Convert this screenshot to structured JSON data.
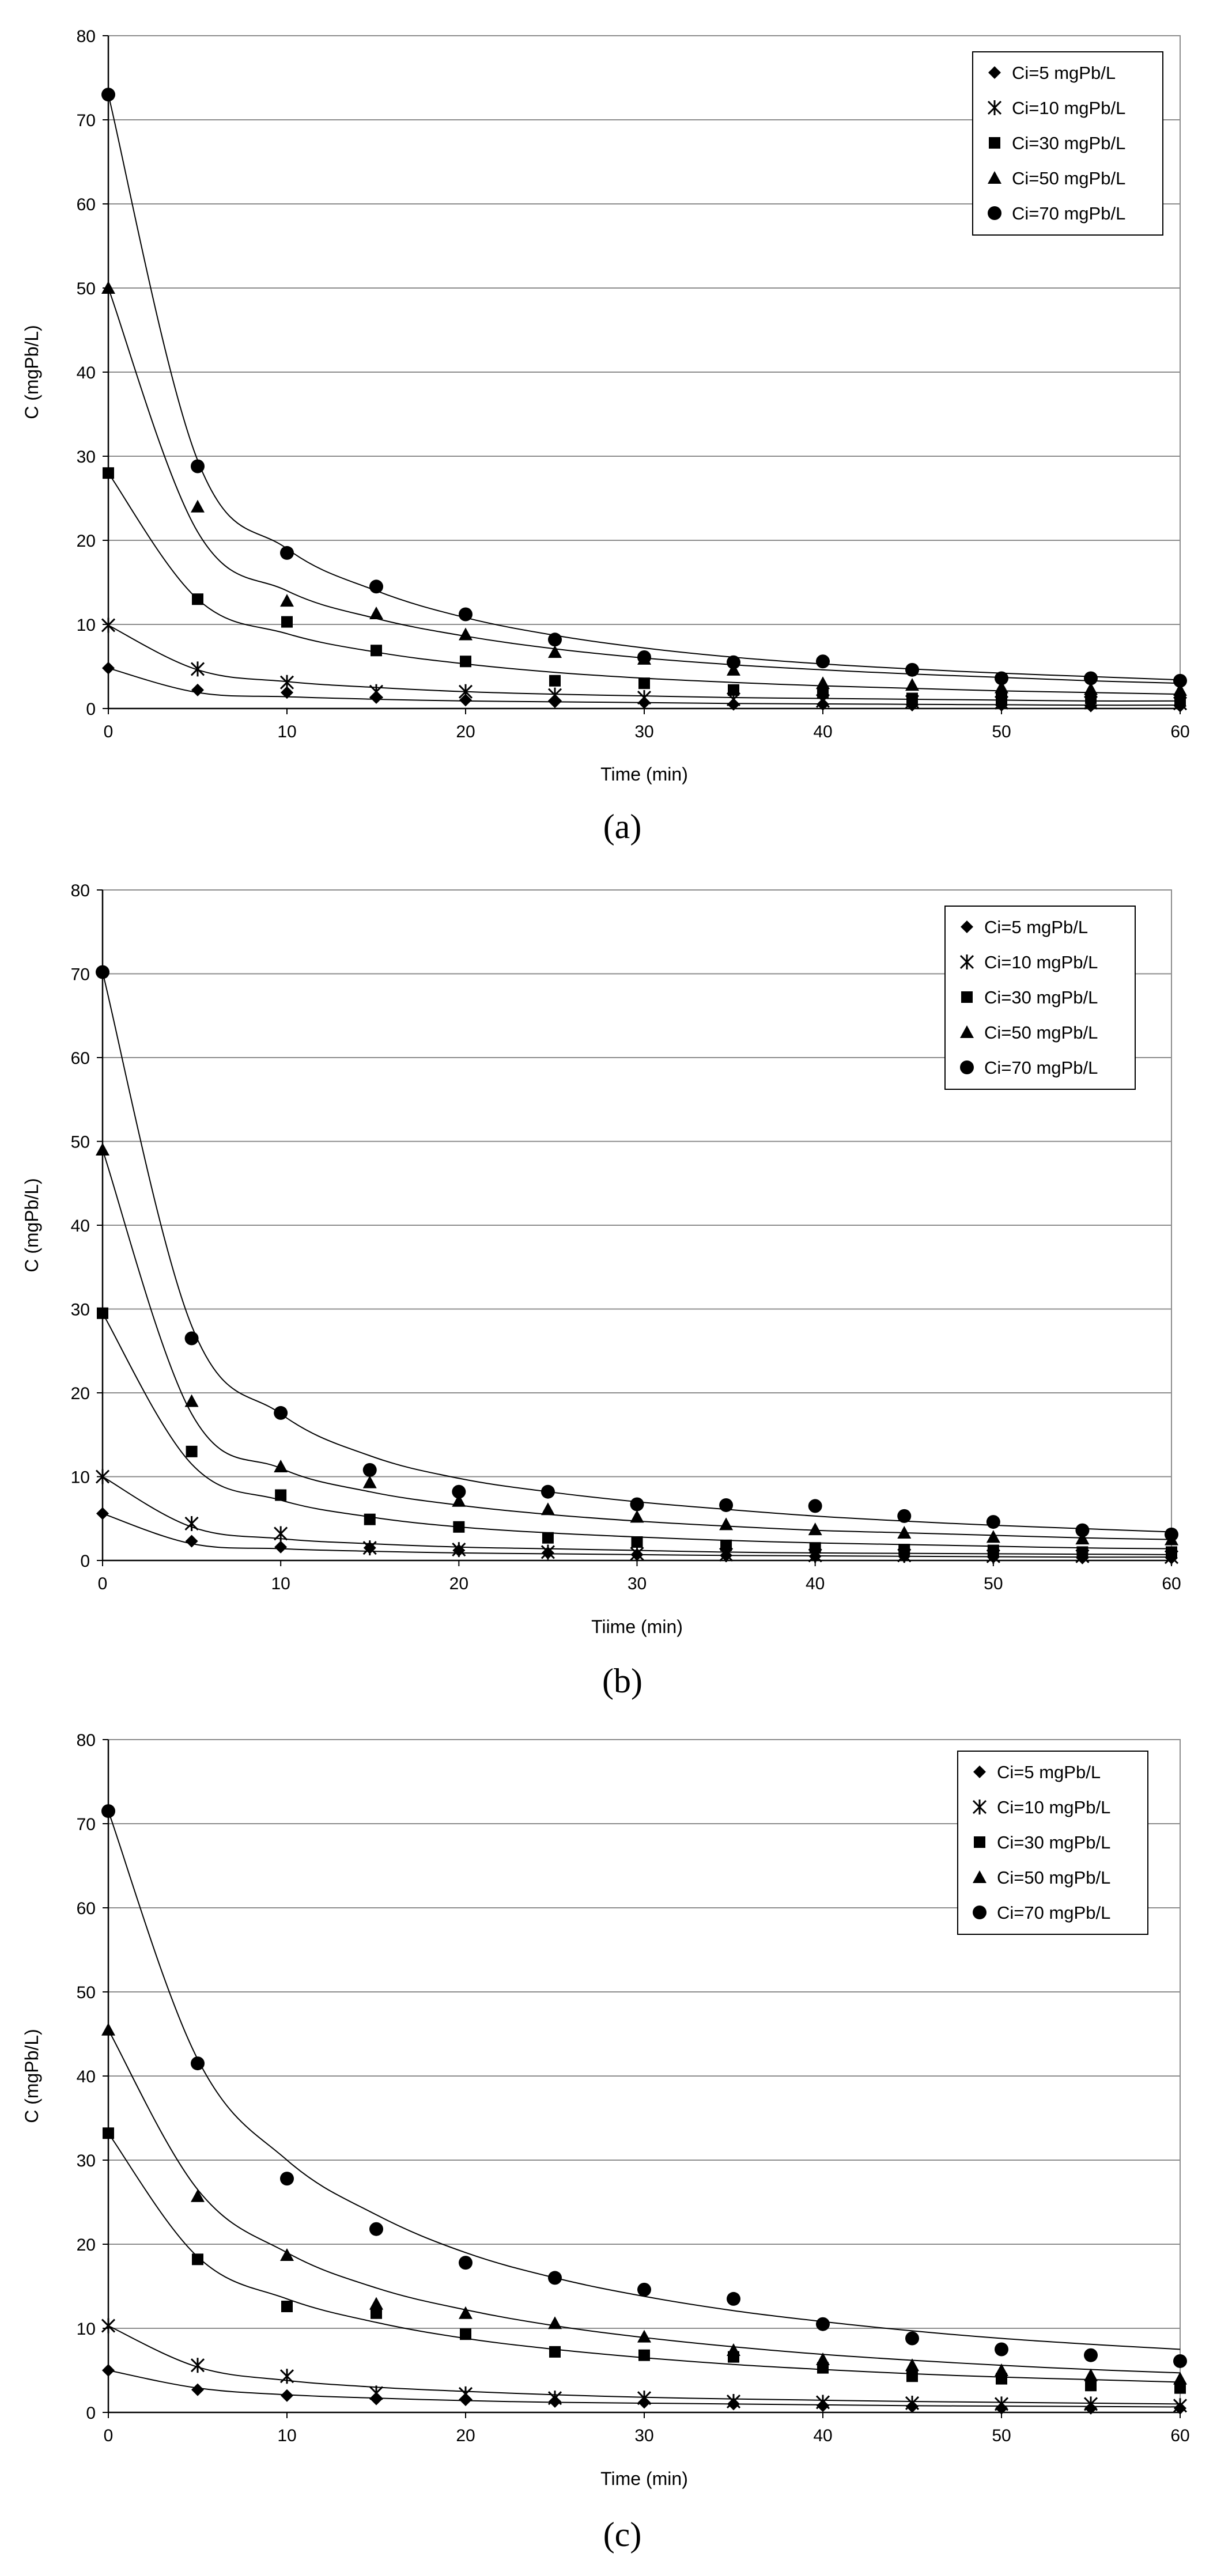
{
  "chart_data": [
    {
      "type": "scatter",
      "panel_label": "(a)",
      "xlabel": "Time (min)",
      "ylabel": "C (mgPb/L)",
      "xlim": [
        0,
        60
      ],
      "ylim": [
        0,
        80
      ],
      "x_ticks": [
        0,
        10,
        20,
        30,
        40,
        50,
        60
      ],
      "y_ticks": [
        0,
        10,
        20,
        30,
        40,
        50,
        60,
        70,
        80
      ],
      "grid": "horizontal",
      "legend_position": "top-right",
      "x": [
        0,
        5,
        10,
        15,
        20,
        25,
        30,
        35,
        40,
        45,
        50,
        55,
        60
      ],
      "series": [
        {
          "name": "Ci=5 mgPb/L",
          "marker": "diamond",
          "values": [
            4.8,
            2.2,
            1.9,
            1.3,
            1.0,
            0.8,
            0.7,
            0.5,
            0.5,
            0.4,
            0.4,
            0.3,
            0.3
          ],
          "fit": [
            4.8,
            1.9,
            1.4,
            1.1,
            0.9,
            0.8,
            0.7,
            0.6,
            0.55,
            0.5,
            0.45,
            0.4,
            0.4
          ]
        },
        {
          "name": "Ci=10 mgPb/L",
          "marker": "cross",
          "values": [
            9.9,
            4.7,
            3.1,
            2.0,
            2.0,
            1.6,
            1.3,
            1.1,
            0.9,
            0.8,
            0.7,
            0.7,
            0.6
          ],
          "fit": [
            9.9,
            4.6,
            3.2,
            2.5,
            2.0,
            1.7,
            1.5,
            1.3,
            1.2,
            1.1,
            1.0,
            0.9,
            0.9
          ]
        },
        {
          "name": "Ci=30 mgPb/L",
          "marker": "square",
          "values": [
            28.0,
            13.0,
            10.3,
            6.9,
            5.6,
            3.3,
            3.0,
            2.2,
            1.9,
            1.2,
            1.2,
            1.2,
            1.0
          ],
          "fit": [
            28.0,
            13.0,
            8.9,
            6.7,
            5.3,
            4.3,
            3.6,
            3.1,
            2.7,
            2.4,
            2.1,
            1.9,
            1.7
          ]
        },
        {
          "name": "Ci=50 mgPb/L",
          "marker": "triangle",
          "values": [
            50.0,
            24.0,
            12.8,
            11.3,
            8.8,
            6.7,
            5.9,
            4.6,
            3.0,
            2.8,
            2.5,
            2.3,
            2.2
          ],
          "fit": [
            50.0,
            21.0,
            14.0,
            10.7,
            8.6,
            7.1,
            6.0,
            5.2,
            4.6,
            4.1,
            3.7,
            3.3,
            3.0
          ]
        },
        {
          "name": "Ci=70 mgPb/L",
          "marker": "circle",
          "values": [
            73.0,
            28.8,
            18.5,
            14.5,
            11.2,
            8.2,
            6.1,
            5.5,
            5.6,
            4.6,
            3.6,
            3.6,
            3.3
          ],
          "fit": [
            73.0,
            29.5,
            19.0,
            14.0,
            10.8,
            8.7,
            7.2,
            6.1,
            5.3,
            4.7,
            4.2,
            3.8,
            3.4
          ]
        }
      ]
    },
    {
      "type": "scatter",
      "panel_label": "(b)",
      "xlabel": "Tiime (min)",
      "ylabel": "C (mgPb/L)",
      "xlim": [
        0,
        60
      ],
      "ylim": [
        0,
        80
      ],
      "x_ticks": [
        0,
        10,
        20,
        30,
        40,
        50,
        60
      ],
      "y_ticks": [
        0,
        10,
        20,
        30,
        40,
        50,
        60,
        70,
        80
      ],
      "grid": "horizontal",
      "legend_position": "top-right",
      "x": [
        0,
        5,
        10,
        15,
        20,
        25,
        30,
        35,
        40,
        45,
        50,
        55,
        60
      ],
      "series": [
        {
          "name": "Ci=5 mgPb/L",
          "marker": "diamond",
          "values": [
            5.6,
            2.3,
            1.6,
            1.5,
            1.2,
            0.9,
            0.7,
            0.6,
            0.5,
            0.5,
            0.4,
            0.3,
            0.3
          ],
          "fit": [
            5.6,
            2.0,
            1.4,
            1.1,
            0.9,
            0.8,
            0.7,
            0.6,
            0.55,
            0.5,
            0.45,
            0.4,
            0.4
          ]
        },
        {
          "name": "Ci=10 mgPb/L",
          "marker": "cross",
          "values": [
            10.0,
            4.4,
            3.2,
            1.5,
            1.3,
            1.0,
            0.8,
            0.7,
            0.6,
            0.6,
            0.5,
            0.5,
            0.4
          ],
          "fit": [
            10.0,
            4.0,
            2.6,
            2.0,
            1.6,
            1.4,
            1.2,
            1.0,
            0.9,
            0.85,
            0.8,
            0.75,
            0.7
          ]
        },
        {
          "name": "Ci=30 mgPb/L",
          "marker": "square",
          "values": [
            29.5,
            13.0,
            7.8,
            4.9,
            4.0,
            2.7,
            2.2,
            1.8,
            1.5,
            1.3,
            1.2,
            1.0,
            1.0
          ],
          "fit": [
            29.5,
            11.5,
            7.2,
            5.2,
            4.0,
            3.3,
            2.8,
            2.4,
            2.1,
            1.9,
            1.7,
            1.5,
            1.4
          ]
        },
        {
          "name": "Ci=50 mgPb/L",
          "marker": "triangle",
          "values": [
            49.0,
            19.0,
            11.2,
            9.3,
            7.1,
            6.1,
            5.2,
            4.3,
            3.7,
            3.3,
            2.8,
            2.6,
            2.5
          ],
          "fit": [
            49.0,
            17.5,
            11.0,
            8.2,
            6.6,
            5.5,
            4.7,
            4.1,
            3.6,
            3.3,
            3.0,
            2.7,
            2.5
          ]
        },
        {
          "name": "Ci=70 mgPb/L",
          "marker": "circle",
          "values": [
            70.2,
            26.5,
            17.6,
            10.8,
            8.2,
            8.2,
            6.7,
            6.6,
            6.5,
            5.3,
            4.6,
            3.6,
            3.1
          ],
          "fit": [
            70.2,
            28.0,
            17.5,
            12.5,
            9.8,
            8.2,
            7.0,
            6.1,
            5.3,
            4.7,
            4.2,
            3.8,
            3.4
          ]
        }
      ]
    },
    {
      "type": "scatter",
      "panel_label": "(c)",
      "xlabel": "Time (min)",
      "ylabel": "C (mgPb/L)",
      "xlim": [
        0,
        60
      ],
      "ylim": [
        0,
        80
      ],
      "x_ticks": [
        0,
        10,
        20,
        30,
        40,
        50,
        60
      ],
      "y_ticks": [
        0,
        10,
        20,
        30,
        40,
        50,
        60,
        70,
        80
      ],
      "grid": "horizontal",
      "legend_position": "top-right",
      "x": [
        0,
        5,
        10,
        15,
        20,
        25,
        30,
        35,
        40,
        45,
        50,
        55,
        60
      ],
      "series": [
        {
          "name": "Ci=5 mgPb/L",
          "marker": "diamond",
          "values": [
            5.0,
            2.7,
            2.0,
            1.6,
            1.5,
            1.3,
            1.2,
            1.0,
            0.8,
            0.7,
            0.5,
            0.5,
            0.5
          ],
          "fit": [
            5.0,
            2.9,
            2.1,
            1.7,
            1.4,
            1.2,
            1.1,
            1.0,
            0.9,
            0.8,
            0.75,
            0.7,
            0.65
          ]
        },
        {
          "name": "Ci=10 mgPb/L",
          "marker": "cross",
          "values": [
            10.3,
            5.6,
            4.3,
            2.3,
            2.2,
            1.7,
            1.7,
            1.3,
            1.2,
            1.1,
            1.0,
            1.0,
            0.8
          ],
          "fit": [
            10.3,
            5.4,
            3.8,
            3.0,
            2.5,
            2.1,
            1.8,
            1.6,
            1.45,
            1.3,
            1.2,
            1.1,
            1.0
          ]
        },
        {
          "name": "Ci=30 mgPb/L",
          "marker": "square",
          "values": [
            33.2,
            18.2,
            12.6,
            11.8,
            9.3,
            7.2,
            6.8,
            6.6,
            5.3,
            4.3,
            4.0,
            3.2,
            2.9
          ],
          "fit": [
            33.2,
            18.5,
            13.5,
            10.7,
            8.8,
            7.5,
            6.5,
            5.7,
            5.1,
            4.6,
            4.2,
            3.9,
            3.6
          ]
        },
        {
          "name": "Ci=50 mgPb/L",
          "marker": "triangle",
          "values": [
            45.5,
            25.7,
            18.7,
            12.9,
            11.8,
            10.6,
            9.0,
            7.4,
            6.3,
            5.6,
            5.0,
            4.4,
            4.0
          ],
          "fit": [
            45.5,
            26.5,
            19.0,
            14.8,
            12.2,
            10.3,
            8.9,
            7.8,
            6.9,
            6.2,
            5.6,
            5.1,
            4.7
          ]
        },
        {
          "name": "Ci=70 mgPb/L",
          "marker": "circle",
          "values": [
            71.5,
            41.5,
            27.8,
            21.8,
            17.8,
            16.0,
            14.6,
            13.5,
            10.5,
            8.8,
            7.5,
            6.8,
            6.1
          ],
          "fit": [
            71.5,
            42.0,
            30.0,
            23.5,
            19.0,
            16.0,
            13.8,
            12.1,
            10.8,
            9.7,
            8.8,
            8.1,
            7.5
          ]
        }
      ]
    }
  ]
}
